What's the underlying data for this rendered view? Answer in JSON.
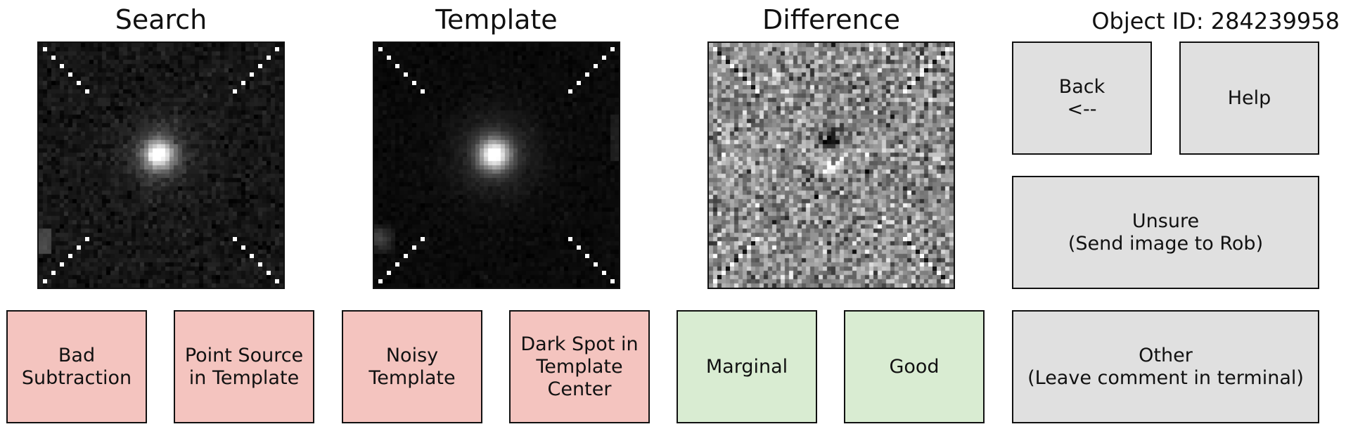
{
  "titles": {
    "search": "Search",
    "template": "Template",
    "difference": "Difference"
  },
  "object_id": "Object ID: 284239958",
  "images": {
    "search": "search-stamp-image",
    "template": "template-stamp-image",
    "difference": "difference-stamp-image"
  },
  "buttons": {
    "back": "Back\n<--",
    "help": "Help",
    "unsure": "Unsure\n(Send image to Rob)",
    "other": "Other\n(Leave comment in terminal)",
    "bad_subtraction": "Bad\nSubtraction",
    "point_source": "Point Source\nin Template",
    "noisy_template": "Noisy\nTemplate",
    "dark_spot": "Dark Spot in\nTemplate\nCenter",
    "marginal": "Marginal",
    "good": "Good"
  },
  "colors": {
    "reject": "#f4c4bf",
    "accept": "#d9ecd2",
    "neutral": "#e0e0e0"
  }
}
